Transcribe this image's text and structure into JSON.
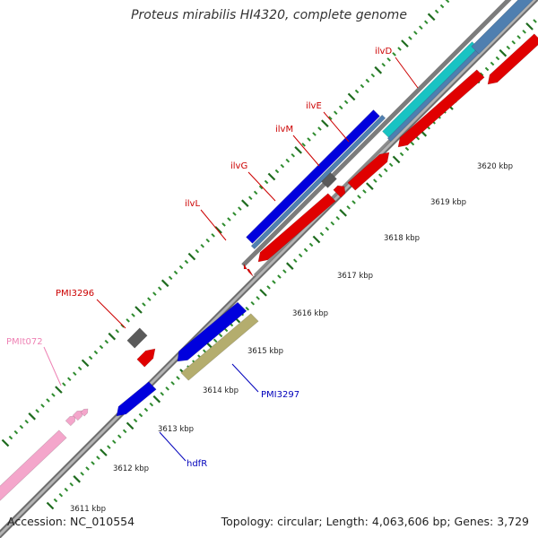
{
  "title": "Proteus mirabilis HI4320, complete genome",
  "footer": {
    "accession": "Accession: NC_010554",
    "summary": "Topology: circular; Length: 4,063,606 bp; Genes: 3,729"
  },
  "colors": {
    "backbone": "#8c8c8c",
    "tick_major": "#1e6b1e",
    "tick_minor": "#2e8b2e",
    "forward_gene": "#0000dd",
    "reverse_gene": "#e00000",
    "steelblue_feature": "#4f7fb0",
    "cyan_feature": "#19c3c3",
    "gray_feature": "#5a5a5a",
    "olive_feature": "#b4ad6e",
    "pink_feature": "#f4a6cb",
    "label_red": "#cc0000",
    "label_blue": "#0000bb",
    "label_pink": "#ee82b4"
  },
  "scale_labels": [
    "3611 kbp",
    "3612 kbp",
    "3613 kbp",
    "3614 kbp",
    "3615 kbp",
    "3616 kbp",
    "3617 kbp",
    "3618 kbp",
    "3619 kbp",
    "3620 kbp"
  ],
  "gene_labels": [
    {
      "name": "ilvD",
      "color": "label_red"
    },
    {
      "name": "ilvE",
      "color": "label_red"
    },
    {
      "name": "ilvM",
      "color": "label_red"
    },
    {
      "name": "ilvG",
      "color": "label_red"
    },
    {
      "name": "ilvL",
      "color": "label_red"
    },
    {
      "name": "PMI3296",
      "color": "label_red"
    },
    {
      "name": "PMIt072",
      "color": "label_pink"
    },
    {
      "name": "PMI3297",
      "color": "label_blue"
    },
    {
      "name": "hdfR",
      "color": "label_blue"
    }
  ]
}
